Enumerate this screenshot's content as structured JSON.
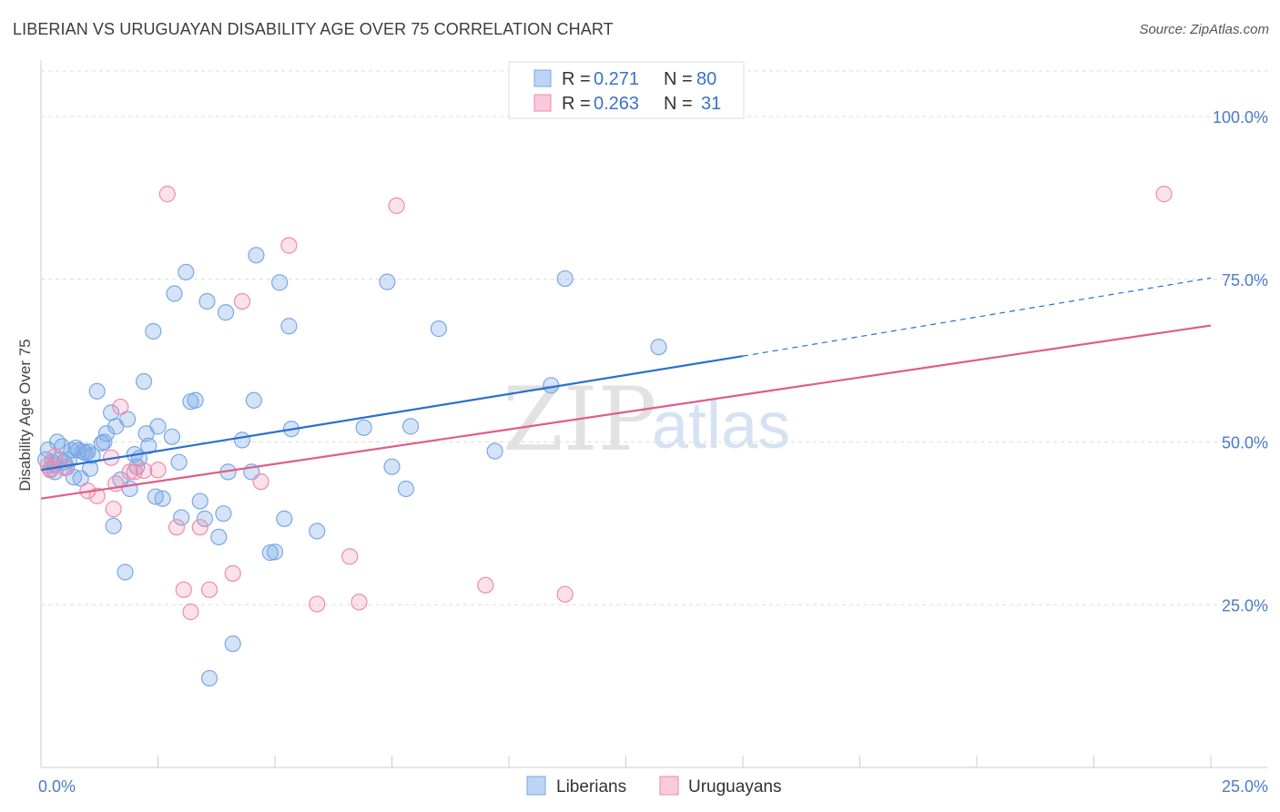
{
  "title": "LIBERIAN VS URUGUAYAN DISABILITY AGE OVER 75 CORRELATION CHART",
  "source": "Source: ZipAtlas.com",
  "chart_data": {
    "type": "scatter",
    "ylabel": "Disability Age Over 75",
    "xlim": [
      0,
      25
    ],
    "ylim": [
      0,
      107
    ],
    "x_ticks": [
      {
        "value": 0,
        "label": "0.0%"
      },
      {
        "value": 25,
        "label": "25.0%"
      }
    ],
    "y_ticks": [
      {
        "value": 25,
        "label": "25.0%"
      },
      {
        "value": 50,
        "label": "50.0%"
      },
      {
        "value": 75,
        "label": "75.0%"
      },
      {
        "value": 100,
        "label": "100.0%"
      }
    ],
    "watermark": {
      "part1": "ZIP",
      "part2": "atlas"
    },
    "stats": [
      {
        "r_label": "R = ",
        "r_value": "0.271",
        "n_label": "N = ",
        "n_value": "80"
      },
      {
        "r_label": "R = ",
        "r_value": "0.263",
        "n_label": "N = ",
        "n_value": "31"
      }
    ],
    "series": [
      {
        "name": "Liberians",
        "color": "#7aa8e6",
        "line_color": "#2a6fd0",
        "trend": {
          "x_start": 0,
          "y_start": 45.7,
          "x_solid_end": 15,
          "y_solid_end": 63.2,
          "x_end": 25,
          "y_end": 75.2
        },
        "points": [
          [
            0.1,
            47.3
          ],
          [
            0.15,
            48.8
          ],
          [
            0.2,
            45.8
          ],
          [
            0.25,
            46.9
          ],
          [
            0.3,
            45.4
          ],
          [
            0.35,
            50.0
          ],
          [
            0.4,
            47.3
          ],
          [
            0.45,
            49.3
          ],
          [
            0.5,
            46.9
          ],
          [
            0.55,
            46.1
          ],
          [
            0.6,
            47.2
          ],
          [
            0.65,
            48.7
          ],
          [
            0.7,
            44.6
          ],
          [
            0.75,
            49.1
          ],
          [
            0.8,
            48.7
          ],
          [
            0.85,
            44.4
          ],
          [
            0.9,
            48.5
          ],
          [
            0.95,
            48.3
          ],
          [
            1.0,
            48.5
          ],
          [
            1.05,
            45.9
          ],
          [
            1.1,
            47.9
          ],
          [
            1.2,
            57.8
          ],
          [
            1.3,
            49.8
          ],
          [
            1.35,
            50.0
          ],
          [
            1.4,
            51.3
          ],
          [
            1.5,
            54.5
          ],
          [
            1.55,
            37.1
          ],
          [
            1.6,
            52.4
          ],
          [
            1.7,
            44.2
          ],
          [
            1.8,
            30.0
          ],
          [
            1.85,
            53.5
          ],
          [
            1.9,
            42.8
          ],
          [
            2.0,
            48.1
          ],
          [
            2.05,
            46.2
          ],
          [
            2.1,
            47.5
          ],
          [
            2.2,
            59.3
          ],
          [
            2.25,
            51.3
          ],
          [
            2.3,
            49.4
          ],
          [
            2.4,
            67.0
          ],
          [
            2.45,
            41.6
          ],
          [
            2.5,
            52.4
          ],
          [
            2.6,
            41.3
          ],
          [
            2.8,
            50.8
          ],
          [
            2.85,
            72.8
          ],
          [
            2.95,
            46.9
          ],
          [
            3.0,
            38.4
          ],
          [
            3.1,
            76.1
          ],
          [
            3.2,
            56.2
          ],
          [
            3.3,
            56.4
          ],
          [
            3.4,
            40.9
          ],
          [
            3.5,
            38.2
          ],
          [
            3.55,
            71.6
          ],
          [
            3.6,
            13.7
          ],
          [
            3.8,
            35.4
          ],
          [
            3.9,
            39.0
          ],
          [
            3.95,
            69.9
          ],
          [
            4.0,
            45.4
          ],
          [
            4.1,
            19.0
          ],
          [
            4.3,
            50.3
          ],
          [
            4.5,
            45.4
          ],
          [
            4.55,
            56.4
          ],
          [
            4.6,
            78.7
          ],
          [
            4.9,
            33.0
          ],
          [
            5.0,
            33.1
          ],
          [
            5.1,
            74.5
          ],
          [
            5.2,
            38.2
          ],
          [
            5.3,
            67.8
          ],
          [
            5.35,
            52.0
          ],
          [
            5.9,
            36.3
          ],
          [
            6.9,
            52.2
          ],
          [
            7.4,
            74.6
          ],
          [
            7.5,
            46.2
          ],
          [
            7.8,
            42.8
          ],
          [
            7.9,
            52.4
          ],
          [
            8.5,
            67.4
          ],
          [
            9.7,
            48.6
          ],
          [
            10.9,
            58.7
          ],
          [
            11.2,
            75.1
          ],
          [
            13.2,
            64.6
          ],
          [
            0.3,
            46.5
          ]
        ]
      },
      {
        "name": "Uruguayans",
        "color": "#f08aaa",
        "line_color": "#e05c8a",
        "trend": {
          "x_start": 0,
          "y_start": 41.3,
          "x_solid_end": 25,
          "y_solid_end": 67.9,
          "x_end": 25,
          "y_end": 67.9
        },
        "points": [
          [
            0.2,
            45.7
          ],
          [
            0.3,
            47.8
          ],
          [
            0.5,
            46.0
          ],
          [
            1.0,
            42.5
          ],
          [
            1.2,
            41.7
          ],
          [
            1.5,
            47.6
          ],
          [
            1.55,
            39.7
          ],
          [
            1.6,
            43.6
          ],
          [
            1.7,
            55.4
          ],
          [
            1.9,
            45.4
          ],
          [
            2.0,
            45.4
          ],
          [
            2.2,
            45.6
          ],
          [
            2.5,
            45.7
          ],
          [
            2.7,
            88.1
          ],
          [
            2.9,
            36.9
          ],
          [
            3.05,
            27.3
          ],
          [
            3.2,
            23.9
          ],
          [
            3.4,
            36.9
          ],
          [
            3.6,
            27.3
          ],
          [
            4.1,
            29.8
          ],
          [
            4.3,
            71.6
          ],
          [
            4.7,
            43.9
          ],
          [
            5.3,
            80.2
          ],
          [
            5.9,
            25.1
          ],
          [
            6.6,
            32.4
          ],
          [
            6.8,
            25.4
          ],
          [
            7.6,
            86.3
          ],
          [
            9.5,
            28.0
          ],
          [
            11.2,
            26.6
          ],
          [
            24.0,
            88.1
          ],
          [
            0.15,
            46.4
          ]
        ]
      }
    ]
  }
}
